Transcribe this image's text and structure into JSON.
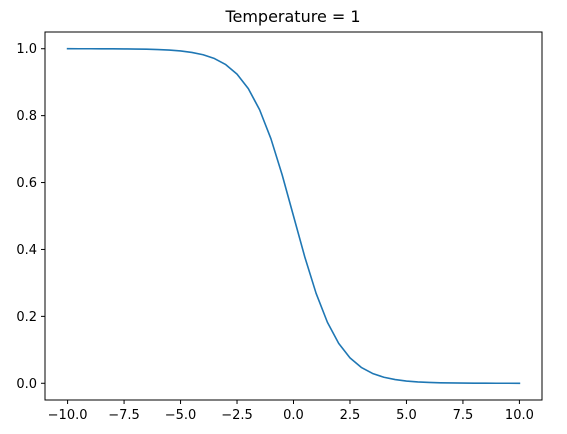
{
  "chart_data": {
    "type": "line",
    "title": "Temperature = 1",
    "xlabel": "",
    "ylabel": "",
    "xlim": [
      -11,
      11
    ],
    "ylim": [
      -0.05,
      1.05
    ],
    "xticks": [
      -10.0,
      -7.5,
      -5.0,
      -2.5,
      0.0,
      2.5,
      5.0,
      7.5,
      10.0
    ],
    "xtick_labels": [
      "−10.0",
      "−7.5",
      "−5.0",
      "−2.5",
      "0.0",
      "2.5",
      "5.0",
      "7.5",
      "10.0"
    ],
    "yticks": [
      0.0,
      0.2,
      0.4,
      0.6,
      0.8,
      1.0
    ],
    "ytick_labels": [
      "0.0",
      "0.2",
      "0.4",
      "0.6",
      "0.8",
      "1.0"
    ],
    "grid": false,
    "legend": false,
    "series": [
      {
        "color": "#1f77b4",
        "x": [
          -10.0,
          -9.5,
          -9.0,
          -8.5,
          -8.0,
          -7.5,
          -7.0,
          -6.5,
          -6.0,
          -5.5,
          -5.0,
          -4.5,
          -4.0,
          -3.5,
          -3.0,
          -2.5,
          -2.0,
          -1.5,
          -1.0,
          -0.5,
          0.0,
          0.5,
          1.0,
          1.5,
          2.0,
          2.5,
          3.0,
          3.5,
          4.0,
          4.5,
          5.0,
          5.5,
          6.0,
          6.5,
          7.0,
          7.5,
          8.0,
          8.5,
          9.0,
          9.5,
          10.0
        ],
        "y": [
          1.0,
          0.9999,
          0.9999,
          0.9998,
          0.9997,
          0.9994,
          0.9991,
          0.9985,
          0.9975,
          0.9959,
          0.9933,
          0.989,
          0.982,
          0.9707,
          0.9526,
          0.9241,
          0.8808,
          0.8176,
          0.7311,
          0.6225,
          0.5,
          0.3775,
          0.2689,
          0.1824,
          0.1192,
          0.0759,
          0.0474,
          0.0293,
          0.018,
          0.011,
          0.0067,
          0.0041,
          0.0025,
          0.0015,
          0.0009,
          0.0006,
          0.0003,
          0.0002,
          0.0001,
          0.0001,
          0.0
        ]
      }
    ]
  }
}
